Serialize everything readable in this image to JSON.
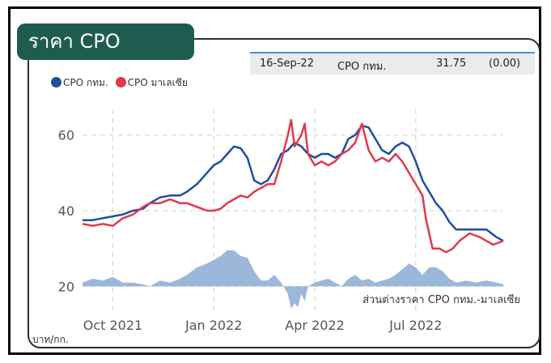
{
  "title": "ราคา CPO",
  "info": {
    "date": "16-Sep-22",
    "name": "CPO กทม.",
    "value": "31.75",
    "change": "(0.00)"
  },
  "colors": {
    "bangkok": "#1f4e9c",
    "malaysia": "#e0394e",
    "diff": "#9bb7d9",
    "tab": "#1f5c50"
  },
  "chart_data": {
    "type": "line",
    "title": "ราคา CPO",
    "ylabel": "บาท/กก.",
    "ylim": [
      10,
      70
    ],
    "yticks": [
      20,
      40,
      60
    ],
    "xticks": [
      {
        "label": "Oct 2021",
        "t": 0.9
      },
      {
        "label": "Jan 2022",
        "t": 3.9
      },
      {
        "label": "Apr 2022",
        "t": 6.9
      },
      {
        "label": "Jul 2022",
        "t": 9.9
      }
    ],
    "xlim": [
      0,
      12.5
    ],
    "legend": [
      "CPO กทม.",
      "CPO มาเลเซีย"
    ],
    "diff_label": "ส่วนต่างราคา CPO กทม.-มาเลเซีย",
    "series": [
      {
        "name": "CPO กทม.",
        "color": "#1f4e9c",
        "points": [
          [
            0,
            37.5
          ],
          [
            0.3,
            37.5
          ],
          [
            0.6,
            38
          ],
          [
            0.9,
            38.5
          ],
          [
            1.2,
            39
          ],
          [
            1.5,
            40
          ],
          [
            1.8,
            40.5
          ],
          [
            2.0,
            42
          ],
          [
            2.3,
            43.5
          ],
          [
            2.6,
            44
          ],
          [
            2.9,
            44
          ],
          [
            3.1,
            45
          ],
          [
            3.4,
            47
          ],
          [
            3.7,
            50
          ],
          [
            3.9,
            52
          ],
          [
            4.1,
            53
          ],
          [
            4.3,
            55
          ],
          [
            4.5,
            57
          ],
          [
            4.7,
            56.5
          ],
          [
            4.9,
            54
          ],
          [
            5.1,
            48
          ],
          [
            5.3,
            47
          ],
          [
            5.5,
            48
          ],
          [
            5.7,
            51
          ],
          [
            5.9,
            55
          ],
          [
            6.1,
            56
          ],
          [
            6.3,
            58
          ],
          [
            6.5,
            57
          ],
          [
            6.7,
            55
          ],
          [
            6.9,
            54
          ],
          [
            7.1,
            55
          ],
          [
            7.3,
            55
          ],
          [
            7.5,
            54
          ],
          [
            7.7,
            55
          ],
          [
            7.9,
            59
          ],
          [
            8.1,
            60
          ],
          [
            8.3,
            62.5
          ],
          [
            8.5,
            62
          ],
          [
            8.7,
            59
          ],
          [
            8.9,
            56
          ],
          [
            9.1,
            55
          ],
          [
            9.3,
            57
          ],
          [
            9.5,
            58
          ],
          [
            9.7,
            57
          ],
          [
            9.9,
            53
          ],
          [
            10.1,
            48
          ],
          [
            10.3,
            45
          ],
          [
            10.5,
            42
          ],
          [
            10.7,
            40
          ],
          [
            10.9,
            37
          ],
          [
            11.1,
            35
          ],
          [
            11.4,
            35
          ],
          [
            11.7,
            35
          ],
          [
            12.0,
            35
          ],
          [
            12.3,
            33
          ],
          [
            12.5,
            32
          ]
        ]
      },
      {
        "name": "CPO มาเลเซีย",
        "color": "#e0394e",
        "points": [
          [
            0,
            36.5
          ],
          [
            0.3,
            36
          ],
          [
            0.6,
            36.5
          ],
          [
            0.9,
            36
          ],
          [
            1.2,
            38
          ],
          [
            1.5,
            39
          ],
          [
            1.8,
            41
          ],
          [
            2.0,
            42
          ],
          [
            2.3,
            42
          ],
          [
            2.6,
            43
          ],
          [
            2.9,
            42
          ],
          [
            3.1,
            42
          ],
          [
            3.4,
            41
          ],
          [
            3.7,
            40
          ],
          [
            3.9,
            40
          ],
          [
            4.1,
            40.5
          ],
          [
            4.3,
            42
          ],
          [
            4.5,
            43
          ],
          [
            4.7,
            44
          ],
          [
            4.9,
            43.5
          ],
          [
            5.1,
            45
          ],
          [
            5.3,
            46
          ],
          [
            5.5,
            47
          ],
          [
            5.7,
            47
          ],
          [
            5.9,
            53
          ],
          [
            6.1,
            60
          ],
          [
            6.2,
            64
          ],
          [
            6.3,
            57
          ],
          [
            6.5,
            60
          ],
          [
            6.6,
            63
          ],
          [
            6.7,
            55
          ],
          [
            6.9,
            52
          ],
          [
            7.1,
            53
          ],
          [
            7.3,
            52
          ],
          [
            7.5,
            53
          ],
          [
            7.7,
            55
          ],
          [
            7.9,
            56
          ],
          [
            8.1,
            58
          ],
          [
            8.3,
            63
          ],
          [
            8.5,
            56
          ],
          [
            8.7,
            53
          ],
          [
            8.9,
            54
          ],
          [
            9.1,
            53
          ],
          [
            9.3,
            55
          ],
          [
            9.5,
            53
          ],
          [
            9.7,
            50
          ],
          [
            9.9,
            47
          ],
          [
            10.1,
            44
          ],
          [
            10.2,
            38
          ],
          [
            10.4,
            30
          ],
          [
            10.6,
            30
          ],
          [
            10.8,
            29
          ],
          [
            11.0,
            30
          ],
          [
            11.2,
            32
          ],
          [
            11.5,
            34
          ],
          [
            11.8,
            33
          ],
          [
            12.0,
            32
          ],
          [
            12.2,
            31
          ],
          [
            12.5,
            32
          ]
        ]
      },
      {
        "name": "ส่วนต่างราคา CPO กทม.-มาเลเซีย",
        "color": "#9bb7d9",
        "baseline": 20,
        "points": [
          [
            0,
            21
          ],
          [
            0.3,
            22
          ],
          [
            0.6,
            21.5
          ],
          [
            0.9,
            22.5
          ],
          [
            1.2,
            21
          ],
          [
            1.5,
            21
          ],
          [
            1.8,
            20.5
          ],
          [
            2.0,
            20
          ],
          [
            2.3,
            21.5
          ],
          [
            2.6,
            21
          ],
          [
            2.9,
            22
          ],
          [
            3.1,
            23
          ],
          [
            3.4,
            25
          ],
          [
            3.7,
            26
          ],
          [
            3.9,
            27
          ],
          [
            4.1,
            28
          ],
          [
            4.3,
            29.5
          ],
          [
            4.5,
            29.5
          ],
          [
            4.7,
            28
          ],
          [
            4.9,
            27.5
          ],
          [
            5.1,
            24
          ],
          [
            5.3,
            21.5
          ],
          [
            5.5,
            21.5
          ],
          [
            5.7,
            23
          ],
          [
            5.9,
            21
          ],
          [
            6.1,
            18
          ],
          [
            6.2,
            14
          ],
          [
            6.3,
            15.5
          ],
          [
            6.4,
            14.5
          ],
          [
            6.5,
            18
          ],
          [
            6.6,
            16
          ],
          [
            6.7,
            20
          ],
          [
            6.9,
            21
          ],
          [
            7.1,
            21.5
          ],
          [
            7.3,
            22
          ],
          [
            7.5,
            21
          ],
          [
            7.7,
            20
          ],
          [
            7.9,
            22
          ],
          [
            8.1,
            23
          ],
          [
            8.3,
            21.5
          ],
          [
            8.5,
            22
          ],
          [
            8.7,
            21
          ],
          [
            8.9,
            21.5
          ],
          [
            9.1,
            22
          ],
          [
            9.3,
            23
          ],
          [
            9.5,
            24.5
          ],
          [
            9.7,
            26
          ],
          [
            9.9,
            25
          ],
          [
            10.1,
            23
          ],
          [
            10.3,
            25
          ],
          [
            10.5,
            25
          ],
          [
            10.7,
            24
          ],
          [
            10.9,
            22
          ],
          [
            11.1,
            21
          ],
          [
            11.4,
            21.5
          ],
          [
            11.7,
            21
          ],
          [
            12.0,
            21.5
          ],
          [
            12.3,
            21
          ],
          [
            12.5,
            20.5
          ]
        ]
      }
    ]
  }
}
